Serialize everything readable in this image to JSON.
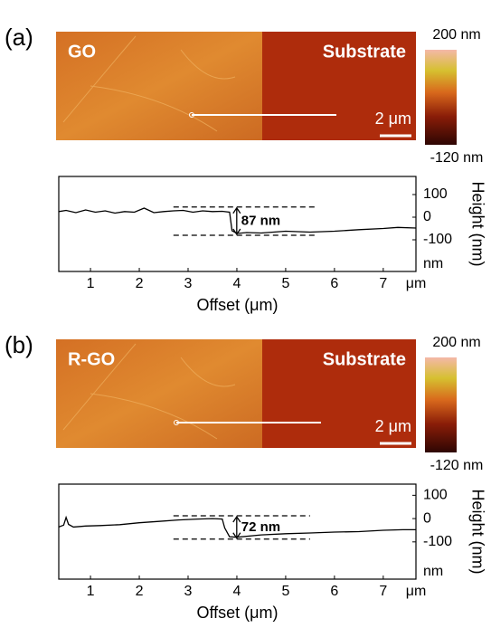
{
  "chart_data": [
    {
      "type": "line",
      "panel_label": "(a)",
      "image": {
        "labels": [
          "GO",
          "Substrate"
        ],
        "scale_bar": "2 μm",
        "colorbar_ticks": [
          {
            "value": 200,
            "label": "200 nm"
          },
          {
            "value": -120,
            "label": "-120 nm"
          }
        ]
      },
      "x_label": "Offset (μm)",
      "y_label": "Height (nm)",
      "x_unit": "μm",
      "y_unit": "nm",
      "xlim": [
        0.35,
        7.67
      ],
      "ylim": [
        -240,
        180
      ],
      "xticks": [
        1,
        2,
        3,
        4,
        5,
        6,
        7
      ],
      "yticks": [
        100,
        0,
        -100
      ],
      "series": [
        {
          "color": "#000000",
          "x": [
            0.35,
            0.5,
            0.7,
            0.9,
            1.1,
            1.3,
            1.5,
            1.7,
            1.9,
            2.1,
            2.3,
            2.5,
            2.7,
            2.9,
            3.1,
            3.3,
            3.5,
            3.7,
            3.85,
            3.9,
            4.0,
            4.2,
            4.5,
            5.0,
            5.5,
            6.0,
            6.5,
            7.0,
            7.3,
            7.67
          ],
          "values": [
            25,
            30,
            20,
            32,
            22,
            28,
            18,
            25,
            22,
            40,
            20,
            25,
            28,
            30,
            22,
            28,
            25,
            26,
            22,
            -60,
            -72,
            -68,
            -70,
            -62,
            -66,
            -62,
            -55,
            -50,
            -45,
            -48
          ]
        }
      ],
      "step": {
        "label": "87 nm",
        "levels": [
          45,
          -80
        ],
        "x": [
          2.7,
          5.6
        ]
      }
    },
    {
      "type": "line",
      "panel_label": "(b)",
      "image": {
        "labels": [
          "R-GO",
          "Substrate"
        ],
        "scale_bar": "2 μm",
        "colorbar_ticks": [
          {
            "value": 200,
            "label": "200 nm"
          },
          {
            "value": -120,
            "label": "-120 nm"
          }
        ]
      },
      "x_label": "Offset (μm)",
      "y_label": "Height (nm)",
      "x_unit": "μm",
      "y_unit": "nm",
      "xlim": [
        0.35,
        7.67
      ],
      "ylim": [
        -260,
        148
      ],
      "xticks": [
        1,
        2,
        3,
        4,
        5,
        6,
        7
      ],
      "yticks": [
        100,
        0,
        -100
      ],
      "series": [
        {
          "color": "#000000",
          "x": [
            0.35,
            0.45,
            0.5,
            0.55,
            0.65,
            0.9,
            1.2,
            1.6,
            2.0,
            2.4,
            2.8,
            3.2,
            3.5,
            3.7,
            3.75,
            3.85,
            4.0,
            4.5,
            5.0,
            5.5,
            6.0,
            6.5,
            7.0,
            7.4,
            7.67
          ],
          "values": [
            -36,
            -28,
            5,
            -25,
            -36,
            -32,
            -30,
            -26,
            -18,
            -12,
            -6,
            -2,
            0,
            -2,
            -40,
            -78,
            -80,
            -70,
            -65,
            -62,
            -58,
            -56,
            -50,
            -48,
            -48
          ]
        }
      ],
      "step": {
        "label": "72 nm",
        "levels": [
          12,
          -88
        ],
        "x": [
          2.7,
          5.5
        ]
      }
    }
  ]
}
